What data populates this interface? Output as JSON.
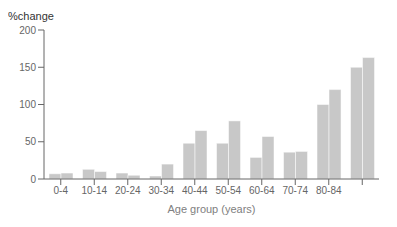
{
  "chart_data": {
    "type": "bar",
    "ylabel": "%change",
    "xlabel": "Age group (years)",
    "categories": [
      "0-4",
      "10-14",
      "20-24",
      "30-34",
      "40-44",
      "50-54",
      "60-64",
      "70-74",
      "80-84",
      null
    ],
    "series": [
      {
        "color": "#c8c8c8",
        "values": [
          7,
          13,
          8,
          4,
          48,
          48,
          29,
          36,
          100,
          150
        ]
      },
      {
        "color": "#c8c8c8",
        "values": [
          8,
          10,
          5,
          20,
          65,
          78,
          57,
          37,
          120,
          163
        ]
      }
    ],
    "ylim": [
      0,
      200
    ],
    "yticks": [
      0,
      50,
      100,
      150,
      200
    ],
    "grid": false
  }
}
